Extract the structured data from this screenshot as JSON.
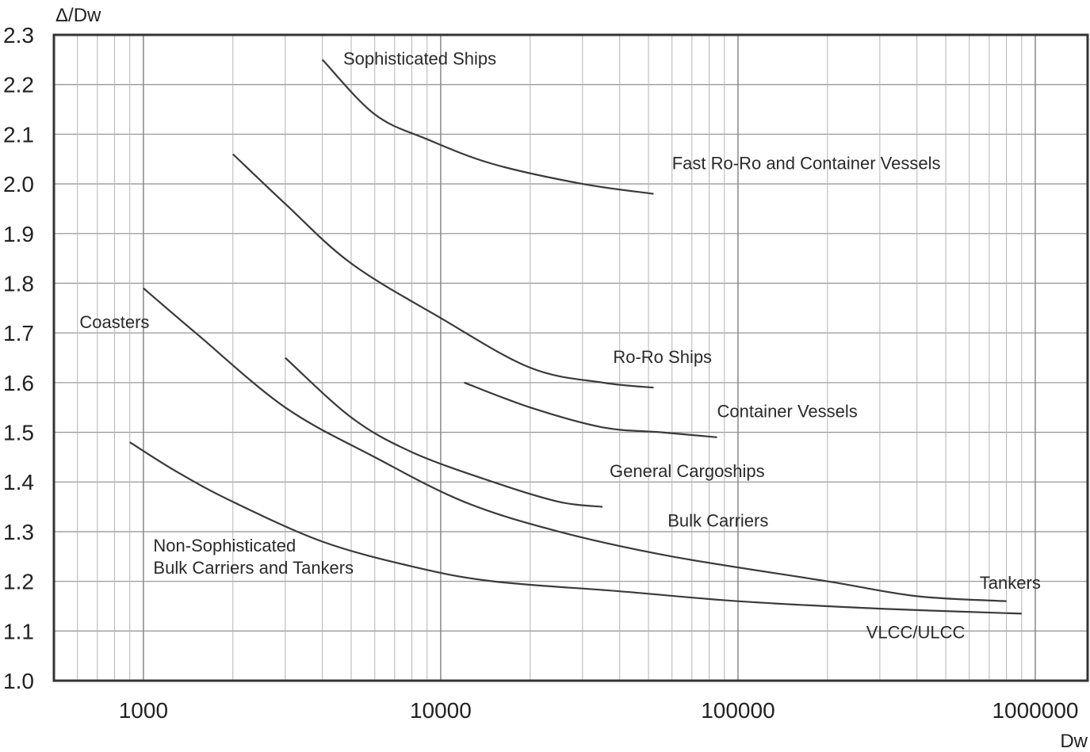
{
  "chart_data": {
    "type": "line",
    "xlabel": "Dw",
    "ylabel": "Δ/Dw",
    "x_scale": "log",
    "xlim": [
      500,
      1500000
    ],
    "ylim": [
      1.0,
      2.3
    ],
    "grid": true,
    "legend": "none (curves labelled inline)",
    "y_ticks": [
      "2.3",
      "2.2",
      "2.1",
      "2.0",
      "1.9",
      "1.8",
      "1.7",
      "1.6",
      "1.5",
      "1.4",
      "1.3",
      "1.2",
      "1.1",
      "1.0"
    ],
    "x_ticks": [
      {
        "value": 1000,
        "label": "1000"
      },
      {
        "value": 10000,
        "label": "10000"
      },
      {
        "value": 100000,
        "label": "100000"
      },
      {
        "value": 1000000,
        "label": "1000000"
      }
    ],
    "series": [
      {
        "name": "Sophisticated Ships",
        "color": "#3a3a3a",
        "points": [
          [
            4000,
            2.25
          ],
          [
            6000,
            2.14
          ],
          [
            9000,
            2.09
          ],
          [
            15000,
            2.04
          ],
          [
            30000,
            2.0
          ],
          [
            52000,
            1.98
          ]
        ]
      },
      {
        "name": "Ro-Ro Ships",
        "color": "#3a3a3a",
        "points": [
          [
            2000,
            2.06
          ],
          [
            3000,
            1.96
          ],
          [
            5000,
            1.84
          ],
          [
            10000,
            1.73
          ],
          [
            20000,
            1.63
          ],
          [
            35000,
            1.6
          ],
          [
            52000,
            1.59
          ]
        ]
      },
      {
        "name": "Container Vessels",
        "color": "#3a3a3a",
        "points": [
          [
            12000,
            1.6
          ],
          [
            20000,
            1.55
          ],
          [
            35000,
            1.51
          ],
          [
            55000,
            1.5
          ],
          [
            85000,
            1.49
          ]
        ]
      },
      {
        "name": "Coasters",
        "color": "#3a3a3a",
        "points": [
          [
            1000,
            1.79
          ],
          [
            1500,
            1.7
          ],
          [
            3000,
            1.55
          ],
          [
            6000,
            1.45
          ],
          [
            12000,
            1.36
          ],
          [
            25000,
            1.3
          ],
          [
            60000,
            1.25
          ],
          [
            200000,
            1.2
          ],
          [
            400000,
            1.17
          ],
          [
            800000,
            1.16
          ]
        ]
      },
      {
        "name": "General Cargoships",
        "color": "#3a3a3a",
        "points": [
          [
            3000,
            1.65
          ],
          [
            5000,
            1.53
          ],
          [
            8000,
            1.46
          ],
          [
            15000,
            1.4
          ],
          [
            25000,
            1.36
          ],
          [
            35000,
            1.35
          ]
        ]
      },
      {
        "name": "Non-Sophisticated Bulk Carriers and Tankers",
        "color": "#3a3a3a",
        "points": [
          [
            900,
            1.48
          ],
          [
            1300,
            1.42
          ],
          [
            2000,
            1.36
          ],
          [
            4000,
            1.28
          ],
          [
            8000,
            1.23
          ],
          [
            15000,
            1.2
          ],
          [
            40000,
            1.18
          ],
          [
            100000,
            1.16
          ],
          [
            300000,
            1.145
          ],
          [
            900000,
            1.135
          ]
        ]
      }
    ],
    "annotations": [
      {
        "text": "Sophisticated Ships",
        "x": 4700,
        "y": 2.24
      },
      {
        "text": "Fast Ro-Ro and Container Vessels",
        "x": 60000,
        "y": 2.03
      },
      {
        "text": "Ro-Ro Ships",
        "x": 38000,
        "y": 1.64
      },
      {
        "text": "Container Vessels",
        "x": 85000,
        "y": 1.53
      },
      {
        "text": "Coasters",
        "x": 610,
        "y": 1.71
      },
      {
        "text": "General Cargoships",
        "x": 37000,
        "y": 1.41
      },
      {
        "text": "Bulk Carriers",
        "x": 58000,
        "y": 1.31
      },
      {
        "text": "Non-Sophisticated",
        "x": 1080,
        "y": 1.26
      },
      {
        "text": "Bulk Carriers and Tankers",
        "x": 1080,
        "y": 1.215
      },
      {
        "text": "Tankers",
        "x": 650000,
        "y": 1.185
      },
      {
        "text": "VLCC/ULCC",
        "x": 270000,
        "y": 1.085
      }
    ]
  }
}
